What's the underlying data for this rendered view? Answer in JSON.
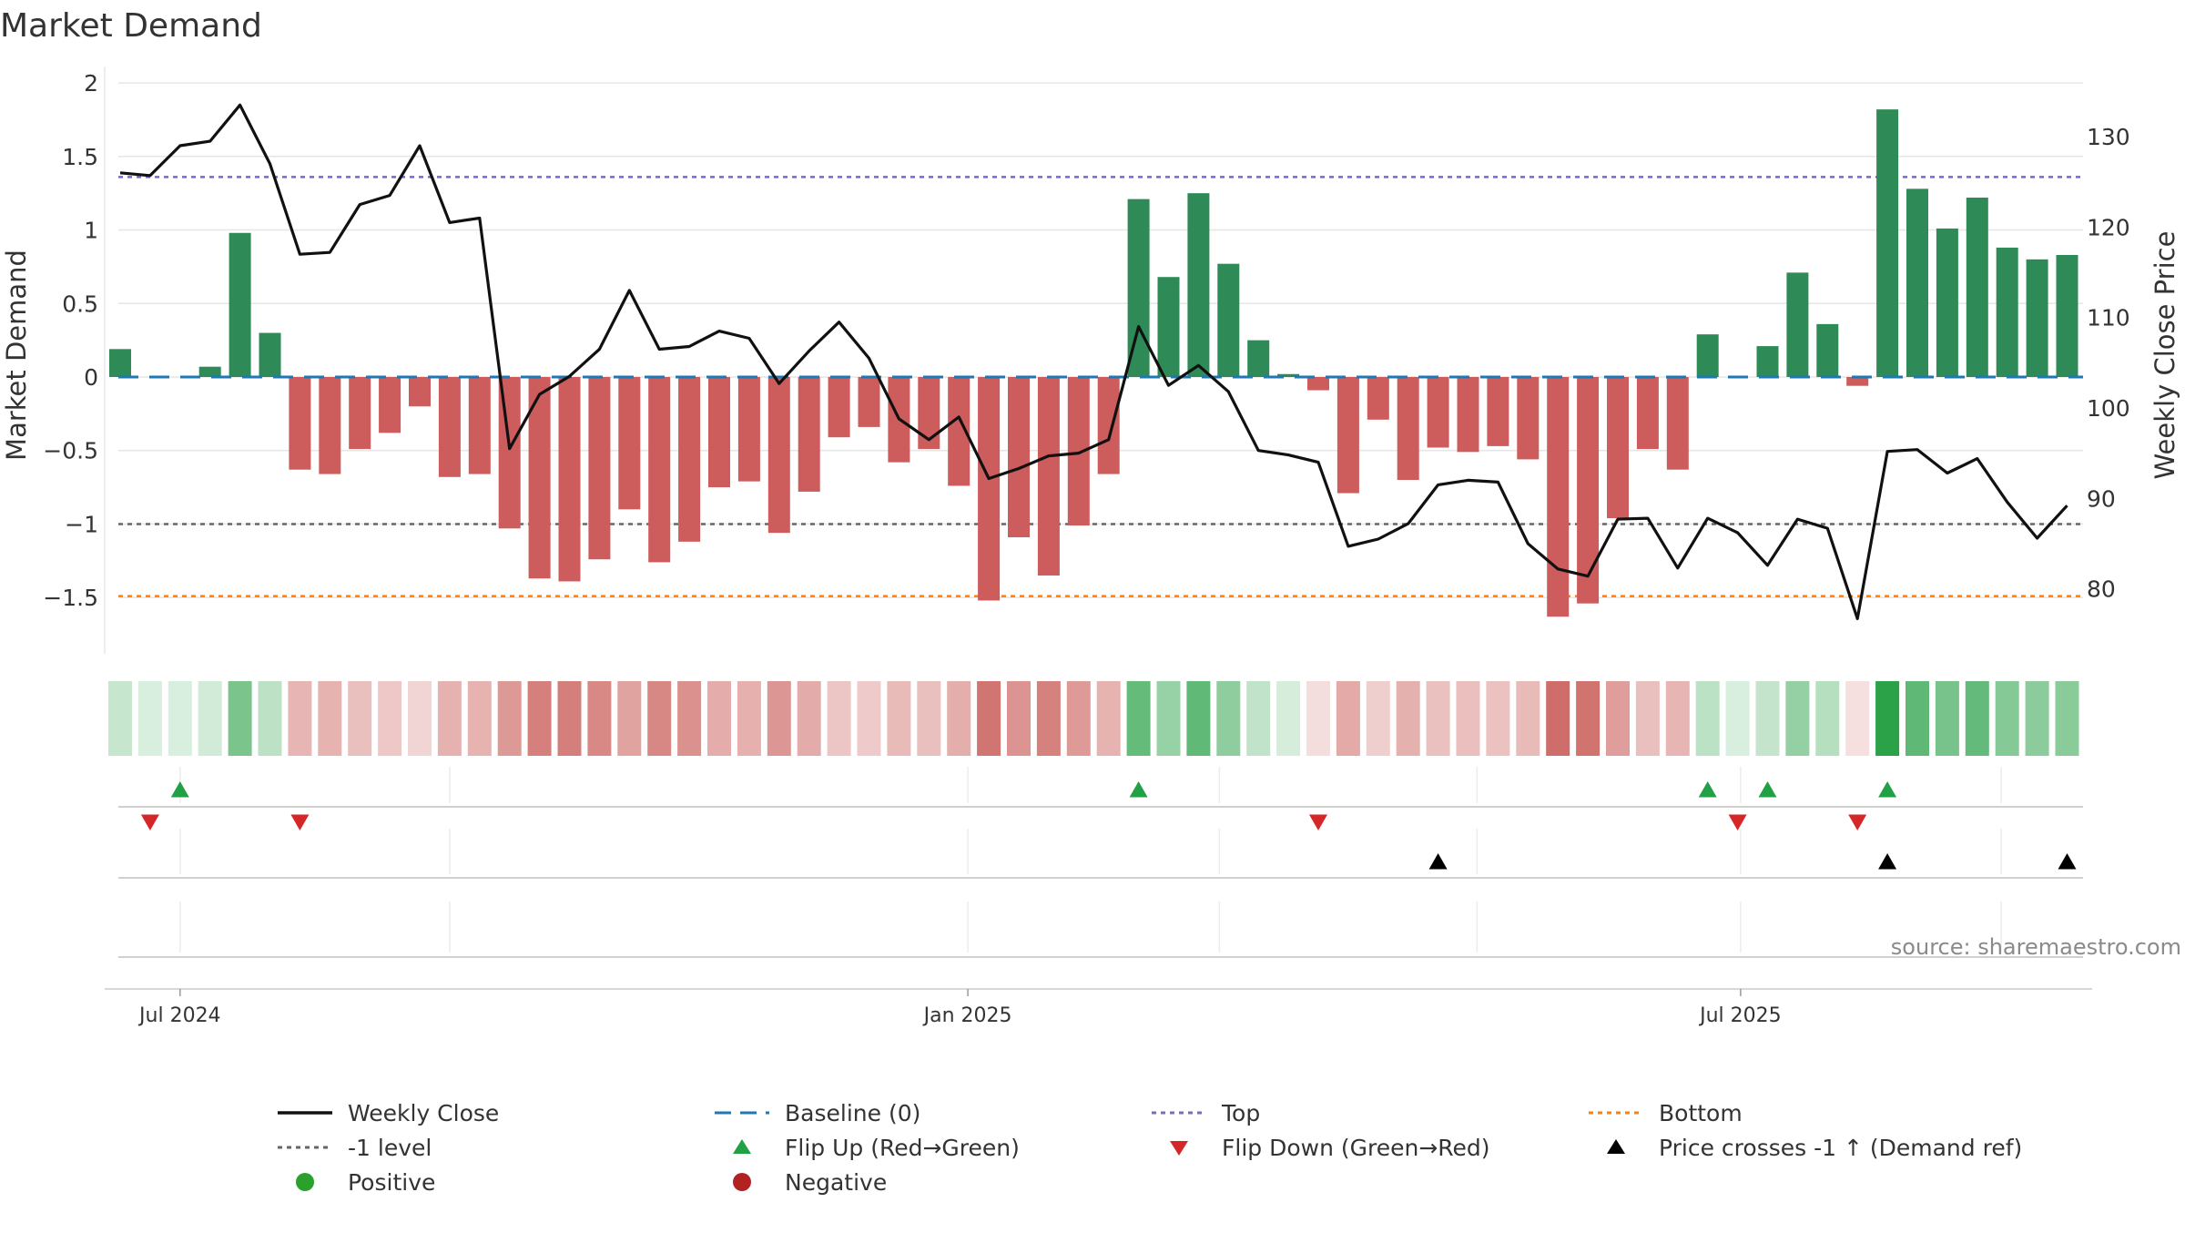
{
  "chart_data": {
    "type": "bar",
    "title": "Market Demand",
    "ylabel": "Market Demand",
    "ylabel_right": "Weekly Close Price",
    "ylim": [
      -1.8,
      2.05
    ],
    "ylim_right": [
      73,
      140
    ],
    "yticks": [
      2,
      1.5,
      1,
      0.5,
      0,
      -0.5,
      -1,
      -1.5
    ],
    "ytick_labels": [
      "2",
      "1.5",
      "1",
      "0.5",
      "0",
      "−0.5",
      "−1",
      "−1.5"
    ],
    "yticks_right": [
      130,
      120,
      110,
      100,
      90,
      80
    ],
    "ytick_labels_right": [
      "130",
      "120",
      "110",
      "100",
      "90",
      "80"
    ],
    "x_tick_labels": [
      {
        "label": "Jul 2024",
        "index": 2
      },
      {
        "label": "Jan 2025",
        "index": 28.3
      },
      {
        "label": "Jul 2025",
        "index": 54.1
      }
    ],
    "demand": [
      0.19,
      0,
      0,
      0.07,
      0.98,
      0.3,
      -0.63,
      -0.66,
      -0.49,
      -0.38,
      -0.2,
      -0.68,
      -0.66,
      -1.03,
      -1.37,
      -1.39,
      -1.24,
      -0.9,
      -1.26,
      -1.12,
      -0.75,
      -0.71,
      -1.06,
      -0.78,
      -0.41,
      -0.34,
      -0.58,
      -0.49,
      -0.74,
      -1.52,
      -1.09,
      -1.35,
      -1.01,
      -0.66,
      1.21,
      0.68,
      1.25,
      0.77,
      0.25,
      0.02,
      -0.09,
      -0.79,
      -0.29,
      -0.7,
      -0.48,
      -0.51,
      -0.47,
      -0.56,
      -1.63,
      -1.54,
      -0.96,
      -0.49,
      -0.63,
      0.29,
      0,
      0.21,
      0.71,
      0.36,
      -0.06,
      1.82,
      1.28,
      1.01,
      1.22,
      0.88,
      0.8,
      0.83
    ],
    "close": [
      126,
      125.7,
      129,
      129.5,
      133.5,
      127,
      117,
      117.2,
      122.5,
      123.5,
      129,
      120.5,
      121,
      95.5,
      101.5,
      103.5,
      106.5,
      113,
      106.5,
      106.8,
      108.5,
      107.7,
      102.7,
      106.3,
      109.5,
      105.5,
      98.8,
      96.5,
      99,
      92.2,
      93.3,
      94.7,
      95,
      96.5,
      109,
      102.5,
      104.7,
      101.8,
      95.3,
      94.8,
      94,
      84.7,
      85.5,
      87.2,
      91.5,
      92,
      91.8,
      85,
      82.2,
      81.4,
      87.7,
      87.8,
      82.3,
      87.8,
      86.2,
      82.6,
      87.7,
      86.7,
      76.7,
      95.2,
      95.4,
      92.8,
      94.4,
      89.6,
      85.6,
      89.2
    ],
    "baseline": 0,
    "top": 1.36,
    "bottom": -1.49,
    "minus_one_level": -1,
    "flip_up_indices": [
      2,
      34,
      53,
      55,
      59
    ],
    "flip_down_indices": [
      1,
      6,
      40,
      54,
      58
    ],
    "price_cross_indices": [
      44,
      59,
      65
    ],
    "source": "source: sharemaestro.com",
    "colors": {
      "positive_bar": "#2e8b57",
      "negative_bar": "#cd5c5c",
      "close_line": "#111111",
      "baseline": "#1f77b4",
      "top": "#7b68c8",
      "bottom": "#ff7f0e",
      "minus_one": "#666666",
      "flip_up": "#22a046",
      "flip_down": "#d62728",
      "cross": "#000000",
      "positive_dot": "#2ca02c",
      "negative_dot": "#b22222"
    },
    "legend": [
      {
        "key": "close",
        "label": "Weekly Close"
      },
      {
        "key": "baseline",
        "label": "Baseline (0)"
      },
      {
        "key": "top",
        "label": "Top"
      },
      {
        "key": "bottom",
        "label": "Bottom"
      },
      {
        "key": "minus_one",
        "label": "-1 level"
      },
      {
        "key": "flip_up",
        "label": "Flip Up (Red→Green)"
      },
      {
        "key": "flip_down",
        "label": "Flip Down (Green→Red)"
      },
      {
        "key": "cross",
        "label": "Price crosses -1 ↑ (Demand ref)"
      },
      {
        "key": "positive",
        "label": "Positive"
      },
      {
        "key": "negative",
        "label": "Negative"
      }
    ]
  }
}
